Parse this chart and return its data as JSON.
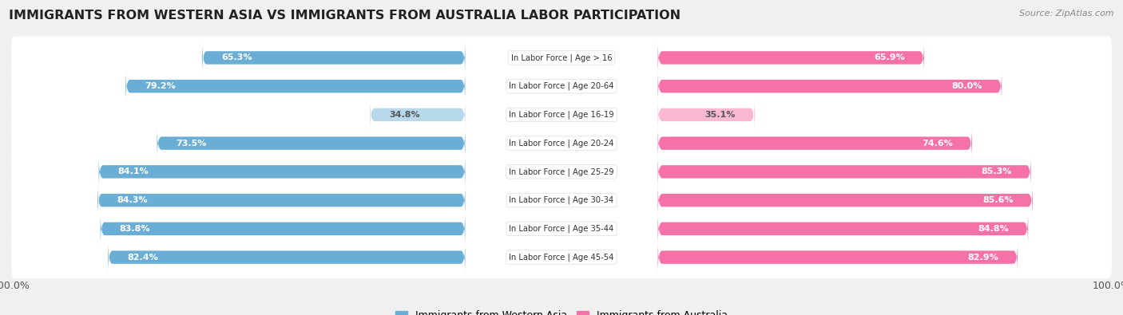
{
  "title": "IMMIGRANTS FROM WESTERN ASIA VS IMMIGRANTS FROM AUSTRALIA LABOR PARTICIPATION",
  "source": "Source: ZipAtlas.com",
  "categories": [
    "In Labor Force | Age > 16",
    "In Labor Force | Age 20-64",
    "In Labor Force | Age 16-19",
    "In Labor Force | Age 20-24",
    "In Labor Force | Age 25-29",
    "In Labor Force | Age 30-34",
    "In Labor Force | Age 35-44",
    "In Labor Force | Age 45-54"
  ],
  "western_asia": [
    65.3,
    79.2,
    34.8,
    73.5,
    84.1,
    84.3,
    83.8,
    82.4
  ],
  "australia": [
    65.9,
    80.0,
    35.1,
    74.6,
    85.3,
    85.6,
    84.8,
    82.9
  ],
  "western_asia_color": "#6aaed6",
  "western_asia_color_light": "#b8d8ec",
  "australia_color": "#f472a8",
  "australia_color_light": "#f9b8d4",
  "bg_color": "#f0f0f0",
  "row_bg": "#ffffff",
  "title_fontsize": 11.5,
  "label_fontsize": 8.0,
  "tick_fontsize": 9,
  "legend_fontsize": 9,
  "low_threshold": 50
}
